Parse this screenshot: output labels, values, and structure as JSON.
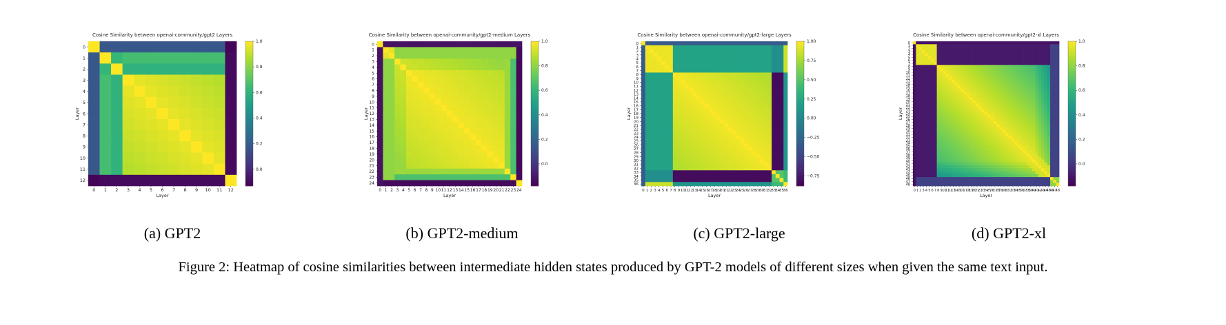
{
  "figure_caption": "Figure 2: Heatmap of cosine similarities between intermediate hidden states produced by GPT-2 models of different sizes when given the same text input.",
  "chart_data": [
    {
      "type": "heatmap",
      "title": "Cosine Similarity between openai-community/gpt2 Layers",
      "subcaption": "(a) GPT2",
      "xlabel": "Layer",
      "ylabel": "Layer",
      "layers": 13,
      "vlim": [
        -0.13,
        1.0
      ],
      "colorbar_ticks": [
        0.0,
        0.2,
        0.4,
        0.6,
        0.8,
        1.0
      ],
      "colorbar_tick_labels": [
        "0.0",
        "0.2",
        "0.4",
        "0.6",
        "0.8",
        "1.0"
      ],
      "colormap": "viridis",
      "block_pattern": "layer 0 dissimilar to all; layers 1-2 form a small block; layers 3-11 highly similar; layer 12 dissimilar to most"
    },
    {
      "type": "heatmap",
      "title": "Cosine Similarity between openai-community/gpt2-medium Layers",
      "subcaption": "(b) GPT2-medium",
      "xlabel": "Layer",
      "ylabel": "Layer",
      "layers": 25,
      "vlim": [
        -0.18,
        1.0
      ],
      "colorbar_ticks": [
        0.0,
        0.2,
        0.4,
        0.6,
        0.8,
        1.0
      ],
      "colorbar_tick_labels": [
        "0.0",
        "0.2",
        "0.4",
        "0.6",
        "0.8",
        "1.0"
      ],
      "colormap": "viridis",
      "block_pattern": "layer 0 dissimilar; layers 1-2 small block; layers 3-23 smooth highly similar block; layer 24 dissimilar"
    },
    {
      "type": "heatmap",
      "title": "Cosine Similarity between openai-community/gpt2-large Layers",
      "subcaption": "(c) GPT2-large",
      "xlabel": "Layer",
      "ylabel": "Layer",
      "layers": 37,
      "vlim": [
        -0.88,
        1.0
      ],
      "colorbar_ticks": [
        -0.75,
        -0.5,
        -0.25,
        0.0,
        0.25,
        0.5,
        0.75,
        1.0
      ],
      "colorbar_tick_labels": [
        "−0.75",
        "−0.50",
        "−0.25",
        "0.00",
        "0.25",
        "0.50",
        "0.75",
        "1.00"
      ],
      "colormap": "viridis",
      "block_pattern": "layers 1-7 block; layers 8-32 large block; layers 33-35 negative band; layer 36 similar to early layers"
    },
    {
      "type": "heatmap",
      "title": "Cosine Similarity between openai-community/gpt2-xl Layers",
      "subcaption": "(d) GPT2-xl",
      "xlabel": "Layer",
      "ylabel": "Layer",
      "layers": 49,
      "vlim": [
        -0.18,
        1.0
      ],
      "colorbar_ticks": [
        0.0,
        0.2,
        0.4,
        0.6,
        0.8,
        1.0
      ],
      "colorbar_tick_labels": [
        "0.0",
        "0.2",
        "0.4",
        "0.6",
        "0.8",
        "1.0"
      ],
      "colormap": "viridis",
      "block_pattern": "layer 0 dissimilar; layers 1-7 block; layers 8-45 large block fading at the end; last layers dissimilar"
    }
  ]
}
